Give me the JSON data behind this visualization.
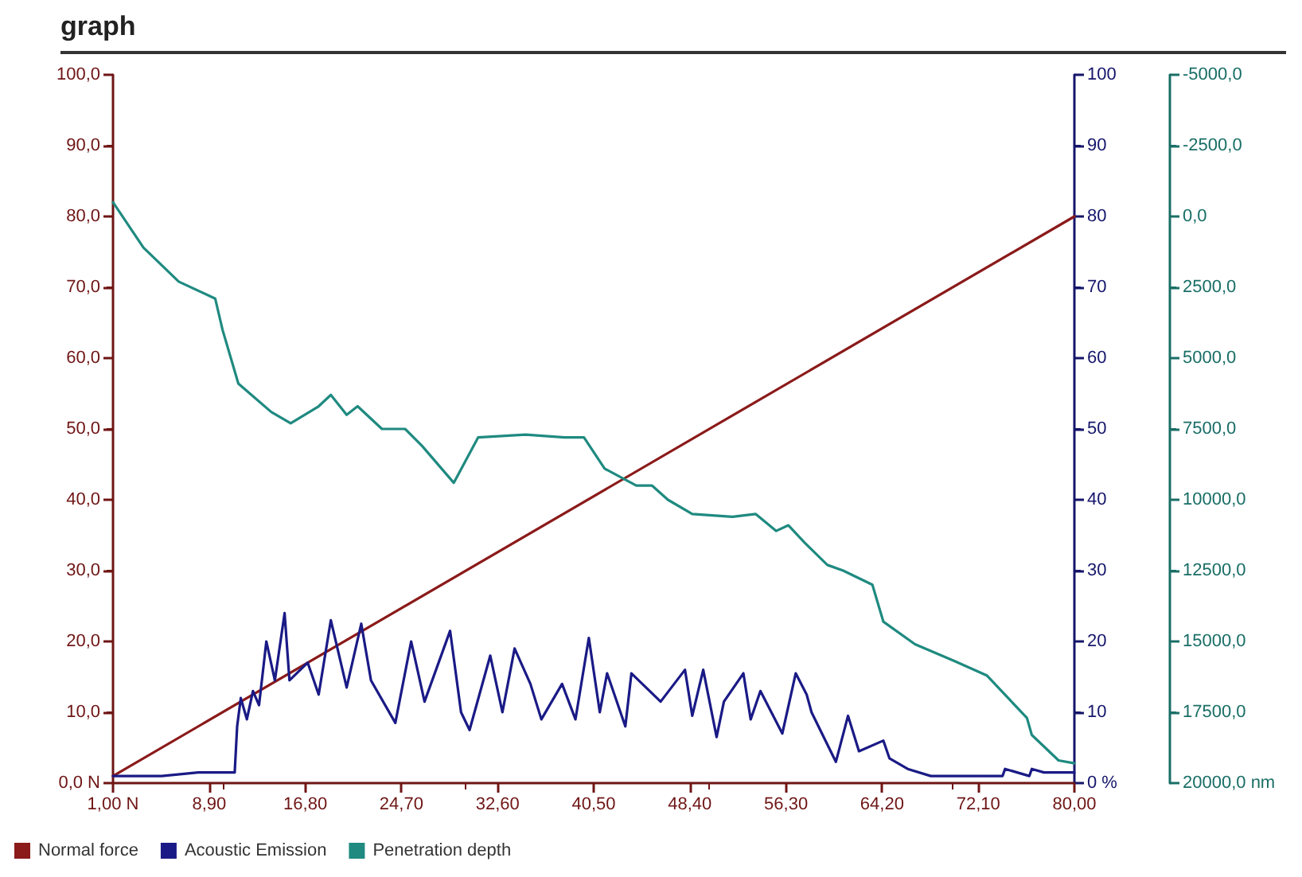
{
  "chart_data": {
    "type": "line",
    "title": "graph",
    "xlim": [
      1,
      80
    ],
    "xticks": [
      {
        "value": 1,
        "label": "1,00 N"
      },
      {
        "value": 8.9,
        "label": "8,90"
      },
      {
        "value": 16.8,
        "label": "16,80"
      },
      {
        "value": 24.7,
        "label": "24,70"
      },
      {
        "value": 32.6,
        "label": "32,60"
      },
      {
        "value": 40.5,
        "label": "40,50"
      },
      {
        "value": 48.4,
        "label": "48,40"
      },
      {
        "value": 56.3,
        "label": "56,30"
      },
      {
        "value": 64.2,
        "label": "64,20"
      },
      {
        "value": 72.1,
        "label": "72,10"
      },
      {
        "value": 80,
        "label": "80,00"
      }
    ],
    "ylim": [
      0,
      100
    ],
    "yticks": [
      {
        "value": 0,
        "label": "0,0 N"
      },
      {
        "value": 10,
        "label": "10,0"
      },
      {
        "value": 20,
        "label": "20,0"
      },
      {
        "value": 30,
        "label": "30,0"
      },
      {
        "value": 40,
        "label": "40,0"
      },
      {
        "value": 50,
        "label": "50,0"
      },
      {
        "value": 60,
        "label": "60,0"
      },
      {
        "value": 70,
        "label": "70,0"
      },
      {
        "value": 80,
        "label": "80,0"
      },
      {
        "value": 90,
        "label": "90,0"
      },
      {
        "value": 100,
        "label": "100,0"
      }
    ],
    "y2lim": [
      0,
      100
    ],
    "y2ticks": [
      {
        "value": 0,
        "label": "0 %"
      },
      10,
      20,
      30,
      40,
      50,
      60,
      70,
      80,
      90,
      100
    ],
    "y3lim": [
      20000,
      -5000
    ],
    "y3ticks": [
      {
        "value": -5000,
        "label": "-5000,0"
      },
      {
        "value": -2500,
        "label": "-2500,0"
      },
      {
        "value": 0,
        "label": "0,0"
      },
      {
        "value": 2500,
        "label": "2500,0"
      },
      {
        "value": 5000,
        "label": "5000,0"
      },
      {
        "value": 7500,
        "label": "7500,0"
      },
      {
        "value": 10000,
        "label": "10000,0"
      },
      {
        "value": 12500,
        "label": "12500,0"
      },
      {
        "value": 15000,
        "label": "15000,0"
      },
      {
        "value": 17500,
        "label": "17500,0"
      },
      {
        "value": 20000,
        "label": "20000,0 nm"
      }
    ],
    "grid": false,
    "legend": "bottom left",
    "marker": "none",
    "line_style": "solid",
    "series": [
      {
        "name": "Normal force",
        "color": "#8b1a1a",
        "x": [
          1,
          80
        ],
        "values": [
          1,
          80
        ]
      },
      {
        "name": "Acoustic Emission",
        "color": "#1a1a86",
        "axis": "y2",
        "x": [
          1,
          5,
          8,
          11,
          11.2,
          11.5,
          12,
          12.5,
          13,
          13.6,
          14.3,
          15.1,
          15.5,
          17,
          17.9,
          18.9,
          20.2,
          21.4,
          22.2,
          24.2,
          25.5,
          26.6,
          28.7,
          29.6,
          30.3,
          32,
          33,
          34,
          35.3,
          36.2,
          37.9,
          39,
          40.1,
          41,
          41.6,
          43.1,
          43.6,
          46,
          48,
          48.6,
          49.5,
          50.6,
          51.2,
          52.8,
          53.4,
          54.2,
          56,
          57.1,
          58,
          58.4,
          60.4,
          61.4,
          62.3,
          64.3,
          64.8,
          66.3,
          68.2,
          74.1,
          74.3,
          76.3,
          76.5,
          77.5,
          79.7,
          80
        ],
        "values": [
          1,
          1,
          1.5,
          1.5,
          8,
          12,
          9,
          13,
          11,
          20,
          14.5,
          24,
          14.5,
          17,
          12.5,
          23,
          13.5,
          22.5,
          14.5,
          8.5,
          20,
          11.5,
          21.5,
          10,
          7.5,
          18,
          10,
          19,
          14,
          9,
          14,
          9,
          20.5,
          10,
          15.5,
          8,
          15.5,
          11.5,
          16,
          9.5,
          16,
          6.5,
          11.5,
          15.5,
          9,
          13,
          7,
          15.5,
          12.5,
          10,
          3,
          9.5,
          4.5,
          6,
          3.5,
          2,
          1,
          1,
          2,
          1,
          2,
          1.5,
          1.5,
          1.5
        ]
      },
      {
        "name": "Penetration depth",
        "color": "#1f8a80",
        "axis": "y3",
        "x": [
          1,
          3.5,
          6.4,
          9.4,
          10,
          11.3,
          14,
          15.6,
          17.9,
          18.9,
          20.2,
          21.1,
          23.1,
          25,
          26.4,
          29,
          31,
          34.9,
          38.1,
          39.7,
          41.4,
          44,
          45.3,
          46.6,
          48.6,
          51.9,
          53.8,
          55.5,
          56.5,
          57.8,
          59.7,
          61,
          63.4,
          64.3,
          66.9,
          70.2,
          72.8,
          76.1,
          76.5,
          78.7,
          80
        ],
        "values": [
          -500,
          1100,
          2300,
          2900,
          4000,
          5900,
          6900,
          7300,
          6700,
          6300,
          7000,
          6700,
          7500,
          7500,
          8100,
          9400,
          7800,
          7700,
          7800,
          7800,
          8900,
          9500,
          9500,
          10000,
          10500,
          10600,
          10500,
          11100,
          10900,
          11500,
          12300,
          12500,
          13000,
          14300,
          15100,
          15700,
          16200,
          17700,
          18300,
          19200,
          19300
        ]
      }
    ]
  }
}
